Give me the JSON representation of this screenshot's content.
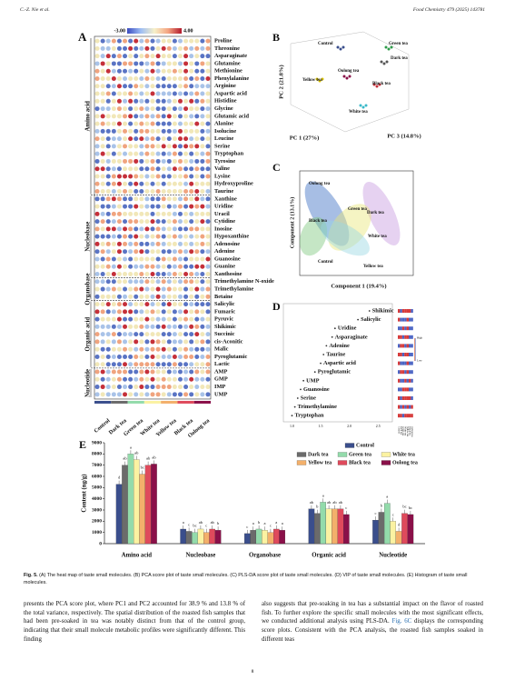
{
  "header": {
    "authors": "C.-Z. Nie et al.",
    "journal": "Food Chemistry 479 (2025) 143781"
  },
  "figure": {
    "panels": {
      "a": {
        "label": "A",
        "scale_min": "-3.00",
        "scale_max": "4.00",
        "columns": [
          "Control",
          "Dark tea",
          "Green tea",
          "White tea",
          "Yellow tea",
          "Black tea",
          "Oolong tea"
        ],
        "groups": [
          {
            "name": "Amino acid",
            "rows": [
              "Proline",
              "Threonine",
              "Asparaginate",
              "Glutamine",
              "Methionine",
              "Phenylalanine",
              "Arginine",
              "Aspartic acid",
              "Histidine",
              "Glycine",
              "Glutamic acid",
              "Alanine",
              "Isolucine",
              "Leucine",
              "Serine",
              "Tryptophan",
              "Tyrosine",
              "Valine",
              "Lysine",
              "Hydroxyproline",
              "Taurine"
            ]
          },
          {
            "name": "Nucleobase",
            "rows": [
              "Xanthine",
              "Uridine",
              "Uracil",
              "Cytidine",
              "Inosine",
              "Hypoxanthine",
              "Adenosine",
              "Adenine",
              "Guanosine",
              "Guanine",
              "Xanthosine"
            ]
          },
          {
            "name": "Organobase",
            "rows": [
              "Trimethylamine N-oxide",
              "Trimethylamine",
              "Betaine"
            ]
          },
          {
            "name": "Organic acid",
            "rows": [
              "Salicylic",
              "Fumaric",
              "Pyruvic",
              "Shikimic",
              "Succinic",
              "cis-Aconitic",
              "Malic",
              "Pyroglutamic",
              "Lactic"
            ]
          },
          {
            "name": "Nucleotide",
            "rows": [
              "AMP",
              "GMP",
              "IMP",
              "UMP"
            ]
          }
        ]
      },
      "b": {
        "label": "B",
        "y_label": "PC 2 (21.8%)",
        "x_label": "PC 1 (27%)",
        "z_label": "PC 3 (14.8%)",
        "point_labels": [
          "Control",
          "Green tea",
          "Dark tea",
          "Oolong tea",
          "Yellow tea",
          "Black tea",
          "White tea"
        ]
      },
      "c": {
        "label": "C",
        "y_label": "Component 2 (13.1%)",
        "x_label": "Component 1 (19.4%)",
        "point_labels": [
          "Oolong tea",
          "Green tea",
          "Dark tea",
          "Black tea",
          "White tea",
          "Control",
          "Yellow tea"
        ]
      },
      "d": {
        "label": "D",
        "scale_high": "High",
        "scale_low": "Low",
        "features": [
          "Shikimic",
          "Salicylic",
          "Uridine",
          "Asparaginate",
          "Adenine",
          "Taurine",
          "Aspartic acid",
          "Pyroglutamic",
          "UMP",
          "Guanosine",
          "Serine",
          "Trimethylamine",
          "Tryptophan"
        ],
        "values": [
          2.35,
          2.15,
          1.75,
          1.7,
          1.6,
          1.55,
          1.5,
          1.4,
          1.2,
          1.15,
          1.1,
          1.05,
          1.0
        ],
        "xlim": [
          0.85,
          2.75
        ],
        "xticks": [
          {
            "value": 1,
            "label": "1.0"
          },
          {
            "value": 1.5,
            "label": "1.5"
          },
          {
            "value": 2,
            "label": "2.0"
          },
          {
            "value": 2.5,
            "label": "2.5"
          }
        ]
      },
      "e": {
        "label": "E",
        "type": "bar",
        "y_label": "Content (ng/g)",
        "categories": [
          "Amino acid",
          "Nucleobase",
          "Organobase",
          "Organic acid",
          "Nucleotide"
        ],
        "ylim": [
          0,
          9000
        ],
        "yticks": [
          0,
          1000,
          2000,
          3000,
          4000,
          5000,
          6000,
          7000,
          8000,
          9000
        ],
        "series": [
          {
            "name": "Control",
            "color": "#3a4e8c",
            "values": [
              5300,
              1300,
              900,
              3100,
              2100
            ],
            "letters": [
              "d",
              "a",
              "c",
              "ab",
              "c"
            ]
          },
          {
            "name": "Dark tea",
            "color": "#6b6b6b",
            "values": [
              7000,
              1100,
              1200,
              2700,
              2800
            ],
            "letters": [
              "ab",
              "c",
              "a",
              "b",
              "b"
            ]
          },
          {
            "name": "Green tea",
            "color": "#93dbab",
            "values": [
              8000,
              1000,
              1300,
              3700,
              3600
            ],
            "letters": [
              "a",
              "bc",
              "b",
              "a",
              "a"
            ]
          },
          {
            "name": "White tea",
            "color": "#fbf2a2",
            "values": [
              7500,
              1300,
              1200,
              3100,
              2000
            ],
            "letters": [
              "ab",
              "ab",
              "a",
              "ab",
              "c"
            ]
          },
          {
            "name": "Yellow tea",
            "color": "#f3b06b",
            "values": [
              6200,
              1000,
              1000,
              3100,
              1100
            ],
            "letters": [
              "bc",
              "c",
              "c",
              "ab",
              "d"
            ]
          },
          {
            "name": "Black tea",
            "color": "#df4a5c",
            "values": [
              7000,
              1300,
              1300,
              3100,
              2700
            ],
            "letters": [
              "ab",
              "ab",
              "a",
              "ab",
              "bc"
            ]
          },
          {
            "name": "Oolong tea",
            "color": "#8a1049",
            "values": [
              7100,
              1200,
              1200,
              2600,
              2600
            ],
            "letters": [
              "ab",
              "b",
              "a",
              "c",
              "bc"
            ]
          }
        ]
      }
    }
  },
  "caption": {
    "label": "Fig. 5.",
    "text": "(A) The heat map of taste small molecules. (B) PCA score plot of taste small molecules. (C) PLS-DA score plot of taste small molecules. (D) VIP of taste small molecules. (E) Histogram of taste small molecules."
  },
  "body": {
    "left": "presents the PCA score plot, where PC1 and PC2 accounted for 38.9 % and 13.8 % of the total variance, respectively. The spatial distribution of the roasted fish samples that had been pre-soaked in tea was notably distinct from that of the control group, indicating that their small molecule metabolic profiles were significantly different. This finding",
    "right_before": "also suggests that pre-soaking in tea has a substantial impact on the flavor of roasted fish. To further explore the specific small molecules with the most significant effects, we conducted additional analysis using PLS-DA.",
    "right_link": "Fig. 6C",
    "right_after": "displays the corresponding score plots. Consistent with the PCA analysis, the roasted fish samples soaked in different teas"
  },
  "page_number": "8"
}
